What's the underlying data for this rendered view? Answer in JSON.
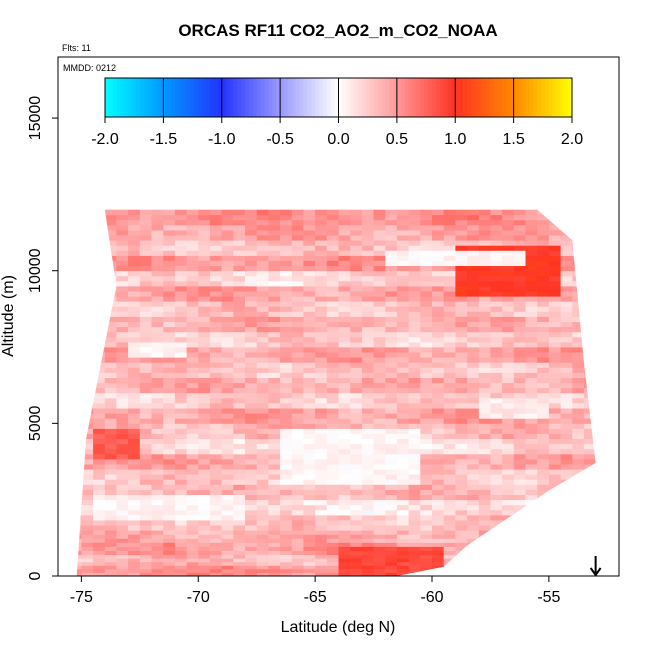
{
  "chart_data": {
    "type": "heatmap",
    "title": "ORCAS RF11 CO2_AO2_m_CO2_NOAA",
    "subtitle_flts": "Flts: 11",
    "subtitle_mmdd": "MMDD: 0212",
    "xlabel": "Latitude (deg N)",
    "ylabel": "Altitude (m)",
    "xlim": [
      -76,
      -52
    ],
    "ylim": [
      0,
      17000
    ],
    "x_ticks": [
      -75,
      -70,
      -65,
      -60,
      -55
    ],
    "x_tick_labels": [
      "-75",
      "-70",
      "-65",
      "-60",
      "-55"
    ],
    "y_ticks": [
      0,
      5000,
      10000,
      15000
    ],
    "y_tick_labels": [
      "0",
      "5000",
      "10000",
      "15000"
    ],
    "colorbar": {
      "min": -2.0,
      "max": 2.0,
      "ticks": [
        -2.0,
        -1.5,
        -1.0,
        -0.5,
        0.0,
        0.5,
        1.0,
        1.5,
        2.0
      ],
      "tick_labels": [
        "-2.0",
        "-1.5",
        "-1.0",
        "-0.5",
        "0.0",
        "0.5",
        "1.0",
        "1.5",
        "2.0"
      ],
      "stops": [
        {
          "v": -2.0,
          "color": "#00ffff"
        },
        {
          "v": -1.5,
          "color": "#0099ff"
        },
        {
          "v": -1.0,
          "color": "#2233ff"
        },
        {
          "v": -0.5,
          "color": "#9999ff"
        },
        {
          "v": 0.0,
          "color": "#ffffff"
        },
        {
          "v": 0.5,
          "color": "#ff9999"
        },
        {
          "v": 1.0,
          "color": "#ff3322"
        },
        {
          "v": 1.5,
          "color": "#ff8800"
        },
        {
          "v": 2.0,
          "color": "#ffff00"
        }
      ]
    },
    "domain_outline": [
      [
        -74.0,
        12000
      ],
      [
        -55.5,
        12000
      ],
      [
        -54.0,
        11000
      ],
      [
        -53.5,
        7000
      ],
      [
        -53.0,
        3700
      ],
      [
        -55.0,
        2800
      ],
      [
        -58.5,
        1000
      ],
      [
        -59.5,
        300
      ],
      [
        -61.5,
        0
      ],
      [
        -75.2,
        0
      ],
      [
        -74.8,
        4500
      ],
      [
        -73.5,
        9500
      ]
    ],
    "altitude_bands": [
      {
        "alt": [
          0,
          350
        ],
        "value": 0.55
      },
      {
        "alt": [
          350,
          700
        ],
        "value": 0.35
      },
      {
        "alt": [
          700,
          1100
        ],
        "value": 0.5
      },
      {
        "alt": [
          1100,
          1500
        ],
        "value": 0.4
      },
      {
        "alt": [
          1500,
          2000
        ],
        "value": 0.3
      },
      {
        "alt": [
          2000,
          2500
        ],
        "value": 0.15
      },
      {
        "alt": [
          2500,
          3000
        ],
        "value": 0.35
      },
      {
        "alt": [
          3000,
          3500
        ],
        "value": 0.3
      },
      {
        "alt": [
          3500,
          4000
        ],
        "value": 0.45
      },
      {
        "alt": [
          4000,
          4500
        ],
        "value": 0.2
      },
      {
        "alt": [
          4500,
          5000
        ],
        "value": 0.35
      },
      {
        "alt": [
          5000,
          5500
        ],
        "value": 0.45
      },
      {
        "alt": [
          5500,
          6000
        ],
        "value": 0.25
      },
      {
        "alt": [
          6000,
          6500
        ],
        "value": 0.4
      },
      {
        "alt": [
          6500,
          7000
        ],
        "value": 0.3
      },
      {
        "alt": [
          7000,
          7500
        ],
        "value": 0.45
      },
      {
        "alt": [
          7500,
          8000
        ],
        "value": 0.25
      },
      {
        "alt": [
          8000,
          8500
        ],
        "value": 0.4
      },
      {
        "alt": [
          8500,
          9000
        ],
        "value": 0.3
      },
      {
        "alt": [
          9000,
          9500
        ],
        "value": 0.45
      },
      {
        "alt": [
          9500,
          10000
        ],
        "value": 0.2
      },
      {
        "alt": [
          10000,
          10500
        ],
        "value": 0.5
      },
      {
        "alt": [
          10500,
          11000
        ],
        "value": 0.3
      },
      {
        "alt": [
          11000,
          11500
        ],
        "value": 0.45
      },
      {
        "alt": [
          11500,
          12000
        ],
        "value": 0.55
      }
    ],
    "features": [
      {
        "lat": [
          -74.5,
          -68.0
        ],
        "alt": [
          1800,
          2600
        ],
        "value": 0.05
      },
      {
        "lat": [
          -66.5,
          -60.5
        ],
        "alt": [
          3000,
          4800
        ],
        "value": 0.05
      },
      {
        "lat": [
          -59.0,
          -54.5
        ],
        "alt": [
          9200,
          10800
        ],
        "value": 1.0
      },
      {
        "lat": [
          -64.0,
          -59.5
        ],
        "alt": [
          0,
          900
        ],
        "value": 0.9
      },
      {
        "lat": [
          -73.0,
          -70.5
        ],
        "alt": [
          7100,
          7700
        ],
        "value": 0.05
      },
      {
        "lat": [
          -62.0,
          -56.0
        ],
        "alt": [
          10200,
          10600
        ],
        "value": 0.05
      },
      {
        "lat": [
          -74.5,
          -72.5
        ],
        "alt": [
          3800,
          4800
        ],
        "value": 0.8
      },
      {
        "lat": [
          -58.0,
          -55.0
        ],
        "alt": [
          5200,
          5800
        ],
        "value": 0.1
      }
    ],
    "marker": {
      "lat": -53.0,
      "alt": 0,
      "symbol": "down-arrow"
    }
  }
}
